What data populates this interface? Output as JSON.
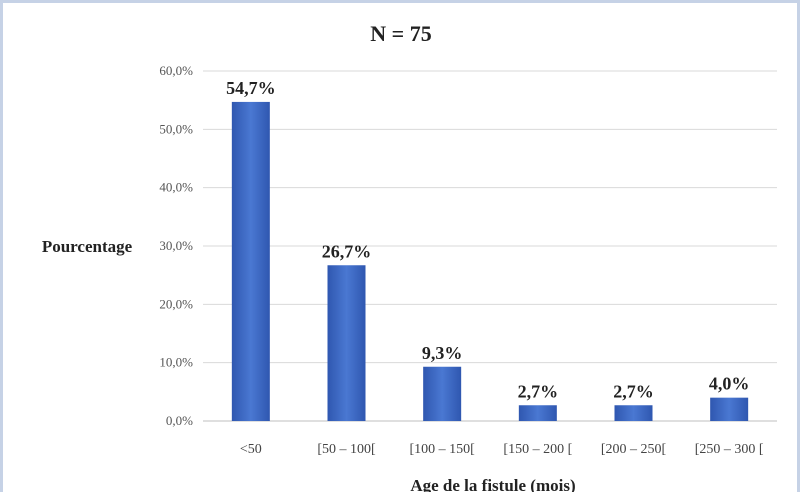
{
  "chart_data": {
    "type": "bar",
    "title": "N = 75",
    "xlabel": "Age de la fistule (mois)",
    "ylabel": "Pourcentage",
    "categories": [
      "<50",
      "[50 – 100[",
      "[100 – 150[",
      "[150 – 200 [",
      "[200 – 250[",
      "[250 – 300 ["
    ],
    "values": [
      54.7,
      26.7,
      9.3,
      2.7,
      2.7,
      4.0
    ],
    "data_labels": [
      "54,7%",
      "26,7%",
      "9,3%",
      "2,7%",
      "2,7%",
      "4,0%"
    ],
    "ylim": [
      0,
      60
    ],
    "yticks": [
      0,
      10,
      20,
      30,
      40,
      50,
      60
    ],
    "ytick_labels": [
      "0,0%",
      "10,0%",
      "20,0%",
      "30,0%",
      "40,0%",
      "50,0%",
      "60,0%"
    ],
    "grid": true,
    "bar_color": "#3f6cc5"
  }
}
